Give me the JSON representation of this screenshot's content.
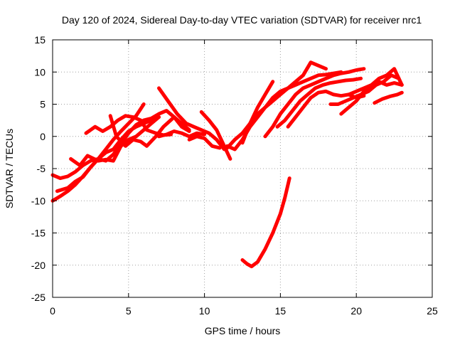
{
  "chart_data": {
    "type": "line",
    "title": "Day 120 of 2024, Sidereal Day-to-day VTEC variation (SDTVAR) for receiver nrc1",
    "xlabel": "GPS time / hours",
    "ylabel": "SDTVAR / TECUs",
    "xlim": [
      0,
      25
    ],
    "ylim": [
      -25,
      15
    ],
    "xticks": [
      0,
      5,
      10,
      15,
      20,
      25
    ],
    "yticks": [
      -25,
      -20,
      -15,
      -10,
      -5,
      0,
      5,
      10,
      15
    ],
    "grid": true,
    "color": "#ff0000",
    "series": [
      {
        "name": "s1",
        "x": [
          0,
          0.5,
          1,
          1.5,
          2,
          2.5,
          3,
          3.5,
          4,
          4.5,
          5,
          5.5,
          6,
          6.5,
          7,
          7.5,
          8,
          8.5,
          9
        ],
        "y": [
          -10,
          -9.3,
          -8.5,
          -7.5,
          -6.2,
          -4.8,
          -3.5,
          -3.8,
          -2.8,
          -1.2,
          0.5,
          1.8,
          2.5,
          2.8,
          3.5,
          4.0,
          3.0,
          1.5,
          0.8
        ]
      },
      {
        "name": "s2",
        "x": [
          0,
          0.5,
          1,
          1.5,
          2,
          2.5,
          3,
          3.5,
          4,
          4.5,
          5,
          5.5,
          6
        ],
        "y": [
          -6,
          -6.5,
          -6.2,
          -5.5,
          -4.5,
          -3.8,
          -3.5,
          -2.0,
          -0.5,
          0.8,
          2.0,
          3.2,
          5.0
        ]
      },
      {
        "name": "s3",
        "x": [
          0.3,
          1,
          1.5,
          2,
          2.5,
          3,
          3.5,
          4,
          4.5,
          5,
          5.5,
          6,
          6.5,
          7
        ],
        "y": [
          -8.5,
          -8.0,
          -7.0,
          -6.3,
          -4.8,
          -3.5,
          -2.5,
          -2.0,
          -0.5,
          0.8,
          1.5,
          2.0,
          2.5,
          3.0
        ]
      },
      {
        "name": "s4",
        "x": [
          1.2,
          1.8,
          2.3,
          3,
          3.5,
          4,
          4.5,
          5,
          5.5,
          6,
          6.5,
          7
        ],
        "y": [
          -3.5,
          -4.5,
          -3.0,
          -3.8,
          -3.6,
          -3.8,
          -1.5,
          -0.5,
          0.0,
          1.0,
          2.0,
          3.0
        ]
      },
      {
        "name": "s5",
        "x": [
          2.2,
          2.8,
          3.3,
          3.8,
          4.3,
          4.8,
          5.3,
          5.8,
          6.2,
          6.8,
          7.3,
          7.8
        ],
        "y": [
          0.5,
          1.5,
          0.8,
          1.5,
          2.5,
          3.2,
          3.0,
          2.5,
          1.0,
          0.5,
          0.2,
          0.3
        ]
      },
      {
        "name": "s6",
        "x": [
          3.8,
          4.2,
          4.8,
          5.3,
          5.8,
          6.2,
          6.8,
          7.3,
          8,
          8.5,
          9
        ],
        "y": [
          3.2,
          0.0,
          -1.5,
          -0.5,
          -0.8,
          -1.5,
          0.0,
          1.5,
          3.0,
          2.0,
          1.0
        ]
      },
      {
        "name": "s7",
        "x": [
          7.0,
          7.6,
          8.2,
          8.8,
          9.3,
          9.8,
          10.3,
          10.8,
          11.3
        ],
        "y": [
          7.5,
          5.5,
          3.5,
          2.0,
          1.5,
          1.0,
          0.5,
          -0.5,
          -2.0
        ]
      },
      {
        "name": "s8",
        "x": [
          7.0,
          7.5,
          8,
          8.5,
          9,
          9.5,
          10
        ],
        "y": [
          0.0,
          0.3,
          0.8,
          0.5,
          0.0,
          0.5,
          0.3
        ]
      },
      {
        "name": "s9",
        "x": [
          9.0,
          9.5,
          10,
          10.5,
          11
        ],
        "y": [
          -0.5,
          0.0,
          -0.3,
          -1.5,
          -1.8
        ]
      },
      {
        "name": "s10",
        "x": [
          9.8,
          10.3,
          10.8,
          11.3,
          11.7
        ],
        "y": [
          3.8,
          2.5,
          1.0,
          -1.5,
          -3.5
        ]
      },
      {
        "name": "s11",
        "x": [
          11.5,
          12.0,
          12.5,
          13.0,
          13.5,
          14.0,
          14.5,
          15.0,
          15.5,
          16.0,
          16.5,
          17.0,
          17.5,
          18.0,
          18.5,
          19.0
        ],
        "y": [
          -1.5,
          -2.0,
          -0.5,
          1.5,
          3.0,
          4.5,
          6.0,
          7.0,
          7.5,
          8.0,
          8.5,
          9.0,
          9.5,
          9.6,
          9.8,
          10.0
        ]
      },
      {
        "name": "s12",
        "x": [
          11.5,
          12.0,
          12.5,
          13.0,
          13.5,
          14.0,
          14.5,
          15.0,
          15.5,
          16.0,
          16.5,
          17.0,
          17.5,
          18.0
        ],
        "y": [
          -1.8,
          -0.5,
          0.5,
          2.0,
          3.5,
          4.5,
          5.5,
          6.5,
          7.5,
          8.5,
          9.5,
          11.5,
          11.0,
          10.5
        ]
      },
      {
        "name": "s13",
        "x": [
          12.5,
          13.0,
          13.5,
          14.0,
          14.5
        ],
        "y": [
          -1.0,
          2.0,
          4.5,
          6.5,
          8.5
        ]
      },
      {
        "name": "s14",
        "x": [
          14.0,
          14.5,
          15.0,
          15.5,
          16.0,
          16.5,
          17.0,
          17.5,
          18.0,
          18.5,
          19.0,
          19.5,
          20.0,
          20.5
        ],
        "y": [
          0.0,
          1.5,
          3.5,
          5.0,
          6.5,
          7.5,
          8.0,
          8.5,
          9.0,
          9.5,
          9.8,
          10.0,
          10.3,
          10.5
        ]
      },
      {
        "name": "s15",
        "x": [
          14.8,
          15.3,
          15.8,
          16.3,
          16.8,
          17.3,
          17.8,
          18.3,
          18.8,
          19.3,
          19.8,
          20.3
        ],
        "y": [
          1.5,
          2.5,
          4.0,
          5.5,
          6.5,
          7.5,
          8.0,
          8.3,
          8.5,
          8.7,
          8.8,
          9.0
        ]
      },
      {
        "name": "s16",
        "x": [
          15.5,
          16.0,
          16.5,
          17.0,
          17.5,
          18.0,
          18.5,
          19.0,
          19.5,
          20.0,
          20.5
        ],
        "y": [
          1.5,
          3.0,
          4.5,
          6.0,
          6.8,
          7.0,
          6.5,
          6.3,
          6.5,
          6.0,
          6.3
        ]
      },
      {
        "name": "s17",
        "x": [
          18.3,
          18.8,
          19.3,
          19.8,
          20.3,
          20.8,
          21.3,
          21.8,
          22.3,
          22.8
        ],
        "y": [
          5.0,
          5.0,
          5.5,
          6.0,
          6.5,
          7.0,
          8.0,
          8.5,
          9.5,
          9.0
        ]
      },
      {
        "name": "s18",
        "x": [
          19.0,
          19.5,
          20.0,
          20.5,
          21.0,
          21.5,
          22.0,
          22.5,
          23.0
        ],
        "y": [
          3.5,
          4.5,
          5.5,
          7.0,
          8.0,
          9.0,
          9.5,
          10.5,
          8.0
        ]
      },
      {
        "name": "s19",
        "x": [
          19.5,
          20.0,
          20.5,
          21.0,
          21.5,
          22.0,
          22.5,
          23.0
        ],
        "y": [
          6.5,
          7.0,
          7.5,
          8.0,
          8.5,
          8.0,
          8.3,
          8.0
        ]
      },
      {
        "name": "s20",
        "x": [
          21.2,
          21.7,
          22.2,
          22.7,
          23.0
        ],
        "y": [
          5.2,
          5.8,
          6.2,
          6.5,
          6.8
        ]
      },
      {
        "name": "s21",
        "x": [
          12.5,
          12.8,
          13.1,
          13.5,
          14.0,
          14.5,
          15.0,
          15.3,
          15.6
        ],
        "y": [
          -19.2,
          -19.8,
          -20.2,
          -19.5,
          -17.5,
          -15.0,
          -12.0,
          -9.5,
          -6.5
        ]
      }
    ]
  }
}
